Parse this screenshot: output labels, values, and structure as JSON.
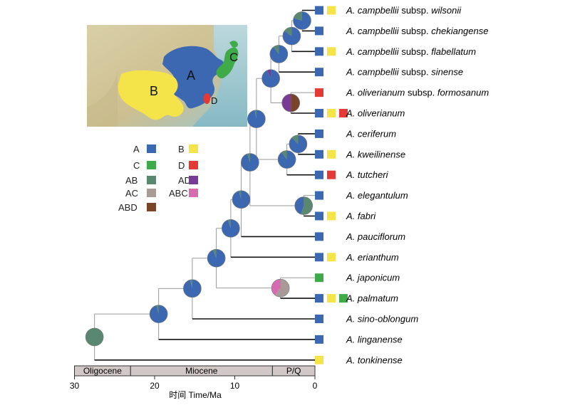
{
  "colors": {
    "A": "#3b68b0",
    "B": "#f4e44a",
    "C": "#3faa48",
    "D": "#e53935",
    "AB": "#5a8770",
    "AD": "#7a3a98",
    "AC": "#a89a96",
    "ABC": "#d66bb1",
    "ABD": "#7a4428"
  },
  "legend": [
    {
      "label": "A",
      "key": "A"
    },
    {
      "label": "B",
      "key": "B"
    },
    {
      "label": "C",
      "key": "C"
    },
    {
      "label": "D",
      "key": "D"
    },
    {
      "label": "AB",
      "key": "AB"
    },
    {
      "label": "AD",
      "key": "AD"
    },
    {
      "label": "AC",
      "key": "AC"
    },
    {
      "label": "ABC",
      "key": "ABC"
    },
    {
      "label": "ABD",
      "key": "ABD"
    }
  ],
  "map": {
    "labels": {
      "A": "A",
      "B": "B",
      "C": "C",
      "D": "D"
    }
  },
  "taxa": [
    {
      "id": "t0",
      "genus": "A.",
      "epithet": "campbellii",
      "rank": "subsp.",
      "infra": "wilsonii",
      "areas": [
        "A",
        "B"
      ]
    },
    {
      "id": "t1",
      "genus": "A.",
      "epithet": "campbellii",
      "rank": "subsp.",
      "infra": "chekiangense",
      "areas": [
        "A"
      ]
    },
    {
      "id": "t2",
      "genus": "A.",
      "epithet": "campbellii",
      "rank": "subsp.",
      "infra": "flabellatum",
      "areas": [
        "A",
        "B"
      ]
    },
    {
      "id": "t3",
      "genus": "A.",
      "epithet": "campbellii",
      "rank": "subsp.",
      "infra": "sinense",
      "areas": [
        "A"
      ]
    },
    {
      "id": "t4",
      "genus": "A.",
      "epithet": "oliverianum",
      "rank": "subsp.",
      "infra": "formosanum",
      "areas": [
        "D"
      ]
    },
    {
      "id": "t5",
      "genus": "A.",
      "epithet": "oliverianum",
      "rank": "",
      "infra": "",
      "areas": [
        "A",
        "B",
        "D"
      ]
    },
    {
      "id": "t6",
      "genus": "A.",
      "epithet": "ceriferum",
      "rank": "",
      "infra": "",
      "areas": [
        "A"
      ]
    },
    {
      "id": "t7",
      "genus": "A.",
      "epithet": "kweilinense",
      "rank": "",
      "infra": "",
      "areas": [
        "A",
        "B"
      ]
    },
    {
      "id": "t8",
      "genus": "A.",
      "epithet": "tutcheri",
      "rank": "",
      "infra": "",
      "areas": [
        "A",
        "D"
      ]
    },
    {
      "id": "t9",
      "genus": "A.",
      "epithet": "elegantulum",
      "rank": "",
      "infra": "",
      "areas": [
        "A"
      ]
    },
    {
      "id": "t10",
      "genus": "A.",
      "epithet": "fabri",
      "rank": "",
      "infra": "",
      "areas": [
        "A",
        "B"
      ]
    },
    {
      "id": "t11",
      "genus": "A.",
      "epithet": "pauciflorum",
      "rank": "",
      "infra": "",
      "areas": [
        "A"
      ]
    },
    {
      "id": "t12",
      "genus": "A.",
      "epithet": "erianthum",
      "rank": "",
      "infra": "",
      "areas": [
        "A",
        "B"
      ]
    },
    {
      "id": "t13",
      "genus": "A.",
      "epithet": "japonicum",
      "rank": "",
      "infra": "",
      "areas": [
        "C"
      ]
    },
    {
      "id": "t14",
      "genus": "A.",
      "epithet": "palmatum",
      "rank": "",
      "infra": "",
      "areas": [
        "A",
        "B",
        "C"
      ]
    },
    {
      "id": "t15",
      "genus": "A.",
      "epithet": "sino-oblongum",
      "rank": "",
      "infra": "",
      "areas": [
        "A"
      ]
    },
    {
      "id": "t16",
      "genus": "A.",
      "epithet": "linganense",
      "rank": "",
      "infra": "",
      "areas": [
        "A"
      ]
    },
    {
      "id": "t17",
      "genus": "A.",
      "epithet": "tonkinense",
      "rank": "",
      "infra": "",
      "areas": [
        "B"
      ]
    }
  ],
  "nodes": [
    {
      "id": "n0",
      "age": 27.5,
      "pie": [
        [
          "AB",
          1
        ]
      ],
      "children": [
        "t17",
        "n1"
      ]
    },
    {
      "id": "n1",
      "age": 19.5,
      "pie": [
        [
          "A",
          0.96
        ],
        [
          "AB",
          0.04
        ]
      ],
      "children": [
        "t16",
        "n2"
      ]
    },
    {
      "id": "n2",
      "age": 15.3,
      "pie": [
        [
          "A",
          0.96
        ],
        [
          "AB",
          0.04
        ]
      ],
      "children": [
        "t15",
        "n3"
      ]
    },
    {
      "id": "n3",
      "age": 12.3,
      "pie": [
        [
          "A",
          0.94
        ],
        [
          "AB",
          0.06
        ]
      ],
      "children": [
        "n4",
        "n17"
      ]
    },
    {
      "id": "n4",
      "age": 10.5,
      "pie": [
        [
          "A",
          0.95
        ],
        [
          "AB",
          0.05
        ]
      ],
      "children": [
        "t12",
        "n5"
      ]
    },
    {
      "id": "n5",
      "age": 9.2,
      "pie": [
        [
          "A",
          0.96
        ],
        [
          "AB",
          0.04
        ]
      ],
      "children": [
        "t11",
        "n6"
      ]
    },
    {
      "id": "n6",
      "age": 8.1,
      "pie": [
        [
          "A",
          0.95
        ],
        [
          "AB",
          0.05
        ]
      ],
      "children": [
        "n15",
        "n7"
      ]
    },
    {
      "id": "n7",
      "age": 7.3,
      "pie": [
        [
          "A",
          0.97
        ],
        [
          "AB",
          0.03
        ]
      ],
      "children": [
        "n8",
        "n14"
      ]
    },
    {
      "id": "n8",
      "age": 5.5,
      "pie": [
        [
          "A",
          0.93
        ],
        [
          "AD",
          0.07
        ]
      ],
      "children": [
        "n9",
        "n13"
      ]
    },
    {
      "id": "n9",
      "age": 4.5,
      "pie": [
        [
          "A",
          0.9
        ],
        [
          "AB",
          0.1
        ]
      ],
      "children": [
        "t3",
        "n10"
      ]
    },
    {
      "id": "n10",
      "age": 2.9,
      "pie": [
        [
          "A",
          0.85
        ],
        [
          "AB",
          0.15
        ]
      ],
      "children": [
        "n11",
        "t2"
      ]
    },
    {
      "id": "n11",
      "age": 1.6,
      "pie": [
        [
          "A",
          0.8
        ],
        [
          "AB",
          0.2
        ]
      ],
      "children": [
        "t0",
        "t1"
      ]
    },
    {
      "id": "n13",
      "age": 3.0,
      "pie": [
        [
          "ABD",
          0.5
        ],
        [
          "AD",
          0.5
        ]
      ],
      "children": [
        "t4",
        "t5"
      ]
    },
    {
      "id": "n14",
      "age": 3.5,
      "pie": [
        [
          "A",
          0.9
        ],
        [
          "AB",
          0.1
        ]
      ],
      "children": [
        "n16",
        "t8"
      ]
    },
    {
      "id": "n16",
      "age": 2.1,
      "pie": [
        [
          "A",
          0.88
        ],
        [
          "AB",
          0.12
        ]
      ],
      "children": [
        "t6",
        "t7"
      ]
    },
    {
      "id": "n15",
      "age": 1.4,
      "pie": [
        [
          "AB",
          0.55
        ],
        [
          "A",
          0.45
        ]
      ],
      "children": [
        "t9",
        "t10"
      ]
    },
    {
      "id": "n17",
      "age": 4.3,
      "pie": [
        [
          "AC",
          0.6
        ],
        [
          "ABC",
          0.4
        ]
      ],
      "children": [
        "t13",
        "t14"
      ]
    }
  ],
  "axis": {
    "ticks": [
      30,
      20,
      10,
      0
    ],
    "title": "时间 Time/Ma",
    "max": 30,
    "min": 0
  },
  "epochs": [
    {
      "name": "Oligocene",
      "from": 30,
      "to": 23
    },
    {
      "name": "Miocene",
      "from": 23,
      "to": 5.3
    },
    {
      "name": "P/Q",
      "from": 5.3,
      "to": 0
    }
  ]
}
